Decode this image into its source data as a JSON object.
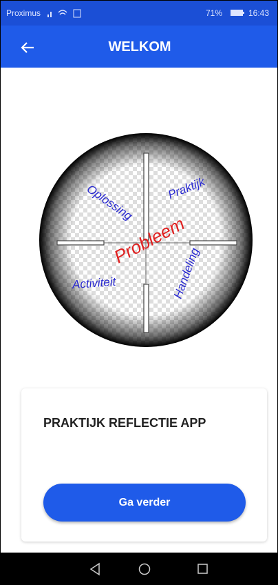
{
  "status_bar": {
    "carrier": "Proximus",
    "battery": "71%",
    "time": "16:43"
  },
  "app_bar": {
    "title": "WELKOM"
  },
  "logo": {
    "labels": [
      "Oplossing",
      "Praktijk",
      "Probleem",
      "Activiteit",
      "Handeling"
    ]
  },
  "card": {
    "title": "PRAKTIJK REFLECTIE APP",
    "button": "Ga verder"
  }
}
